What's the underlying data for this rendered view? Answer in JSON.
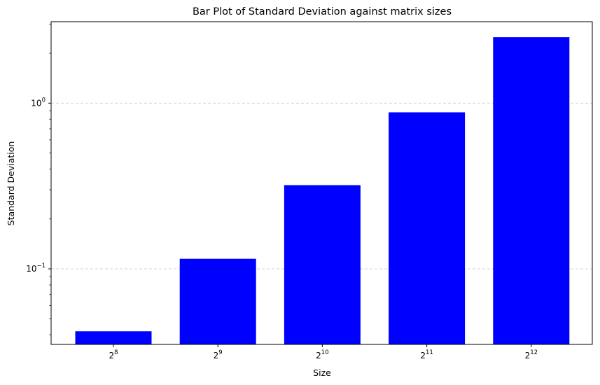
{
  "chart_data": {
    "type": "bar",
    "title": "Bar Plot of Standard Deviation against matrix sizes",
    "xlabel": "Size",
    "ylabel": "Standard Deviation",
    "yscale": "log",
    "ylim": [
      0.035,
      3.1
    ],
    "grid": "y-major dashed",
    "bar_color": "#0000ff",
    "categories": [
      {
        "base": "2",
        "exp": "8"
      },
      {
        "base": "2",
        "exp": "9"
      },
      {
        "base": "2",
        "exp": "10"
      },
      {
        "base": "2",
        "exp": "11"
      },
      {
        "base": "2",
        "exp": "12"
      }
    ],
    "values": [
      0.042,
      0.115,
      0.32,
      0.88,
      2.5
    ],
    "yticks": [
      {
        "value": 1,
        "base": "10",
        "exp": "0"
      },
      {
        "value": 0.1,
        "base": "10",
        "exp": "−1"
      }
    ]
  }
}
